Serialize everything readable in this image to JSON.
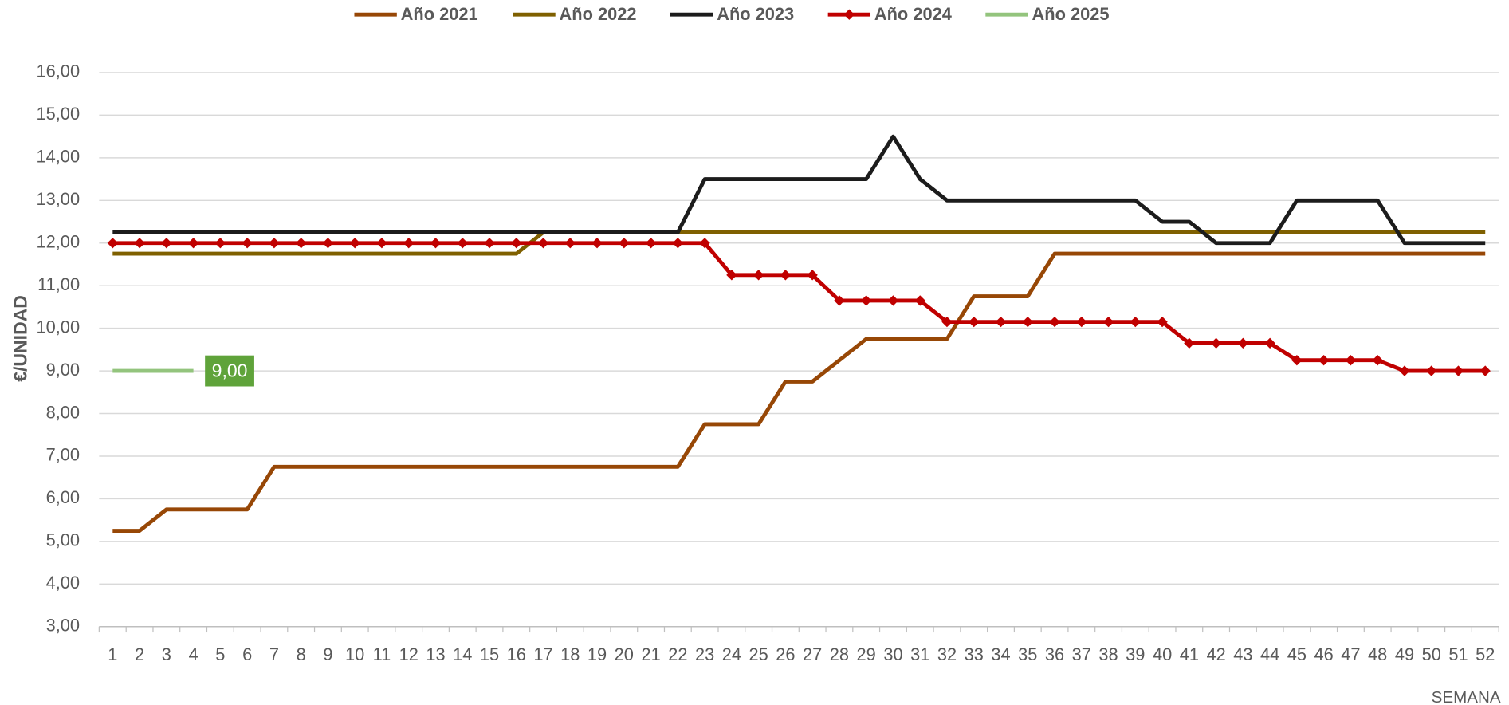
{
  "chart_data": {
    "type": "line",
    "y_label": "€/UNIDAD",
    "x_label": "SEMANA",
    "categories": [
      "1",
      "2",
      "3",
      "4",
      "5",
      "6",
      "7",
      "8",
      "9",
      "10",
      "11",
      "12",
      "13",
      "14",
      "15",
      "16",
      "17",
      "18",
      "19",
      "20",
      "21",
      "22",
      "23",
      "24",
      "25",
      "26",
      "27",
      "28",
      "29",
      "30",
      "31",
      "32",
      "33",
      "34",
      "35",
      "36",
      "37",
      "38",
      "39",
      "40",
      "41",
      "42",
      "43",
      "44",
      "45",
      "46",
      "47",
      "48",
      "49",
      "50",
      "51",
      "52"
    ],
    "series": [
      {
        "name": "Año 2021",
        "color": "#974706",
        "values": [
          5.25,
          5.25,
          5.75,
          5.75,
          5.75,
          5.75,
          6.75,
          6.75,
          6.75,
          6.75,
          6.75,
          6.75,
          6.75,
          6.75,
          6.75,
          6.75,
          6.75,
          6.75,
          6.75,
          6.75,
          6.75,
          6.75,
          7.75,
          7.75,
          7.75,
          8.75,
          8.75,
          9.25,
          9.75,
          9.75,
          9.75,
          9.75,
          10.75,
          10.75,
          10.75,
          11.75,
          11.75,
          11.75,
          11.75,
          11.75,
          11.75,
          11.75,
          11.75,
          11.75,
          11.75,
          11.75,
          11.75,
          11.75,
          11.75,
          11.75,
          11.75,
          11.75
        ]
      },
      {
        "name": "Año 2022",
        "color": "#7f6000",
        "values": [
          11.75,
          11.75,
          11.75,
          11.75,
          11.75,
          11.75,
          11.75,
          11.75,
          11.75,
          11.75,
          11.75,
          11.75,
          11.75,
          11.75,
          11.75,
          11.75,
          12.25,
          12.25,
          12.25,
          12.25,
          12.25,
          12.25,
          12.25,
          12.25,
          12.25,
          12.25,
          12.25,
          12.25,
          12.25,
          12.25,
          12.25,
          12.25,
          12.25,
          12.25,
          12.25,
          12.25,
          12.25,
          12.25,
          12.25,
          12.25,
          12.25,
          12.25,
          12.25,
          12.25,
          12.25,
          12.25,
          12.25,
          12.25,
          12.25,
          12.25,
          12.25,
          12.25
        ]
      },
      {
        "name": "Año 2023",
        "color": "#1c1c1c",
        "values": [
          12.25,
          12.25,
          12.25,
          12.25,
          12.25,
          12.25,
          12.25,
          12.25,
          12.25,
          12.25,
          12.25,
          12.25,
          12.25,
          12.25,
          12.25,
          12.25,
          12.25,
          12.25,
          12.25,
          12.25,
          12.25,
          12.25,
          13.5,
          13.5,
          13.5,
          13.5,
          13.5,
          13.5,
          13.5,
          14.5,
          13.5,
          13,
          13,
          13,
          13,
          13,
          13,
          13,
          13,
          12.5,
          12.5,
          12,
          12,
          12,
          13,
          13,
          13,
          13,
          12,
          12,
          12,
          12
        ]
      },
      {
        "name": "Año 2024",
        "color": "#c00000",
        "marker": "diamond",
        "values": [
          12,
          12,
          12,
          12,
          12,
          12,
          12,
          12,
          12,
          12,
          12,
          12,
          12,
          12,
          12,
          12,
          12,
          12,
          12,
          12,
          12,
          12,
          12,
          11.25,
          11.25,
          11.25,
          11.25,
          10.65,
          10.65,
          10.65,
          10.65,
          10.15,
          10.15,
          10.15,
          10.15,
          10.15,
          10.15,
          10.15,
          10.15,
          10.15,
          9.65,
          9.65,
          9.65,
          9.65,
          9.25,
          9.25,
          9.25,
          9.25,
          9,
          9,
          9,
          9
        ]
      },
      {
        "name": "Año 2025",
        "color": "#93c47d",
        "values": [
          9,
          9,
          9,
          9,
          null,
          null,
          null,
          null,
          null,
          null,
          null,
          null,
          null,
          null,
          null,
          null,
          null,
          null,
          null,
          null,
          null,
          null,
          null,
          null,
          null,
          null,
          null,
          null,
          null,
          null,
          null,
          null,
          null,
          null,
          null,
          null,
          null,
          null,
          null,
          null,
          null,
          null,
          null,
          null,
          null,
          null,
          null,
          null,
          null,
          null,
          null,
          null
        ],
        "value_labels": [
          null,
          null,
          null,
          "9,00",
          null,
          null,
          null,
          null,
          null,
          null,
          null,
          null,
          null,
          null,
          null,
          null,
          null,
          null,
          null,
          null,
          null,
          null,
          null,
          null,
          null,
          null,
          null,
          null,
          null,
          null,
          null,
          null,
          null,
          null,
          null,
          null,
          null,
          null,
          null,
          null,
          null,
          null,
          null,
          null,
          null,
          null,
          null,
          null,
          null,
          null,
          null,
          null
        ]
      }
    ],
    "ylim": [
      3,
      16
    ],
    "yticks": [
      {
        "value": 3,
        "label": "3,00"
      },
      {
        "value": 4,
        "label": "4,00"
      },
      {
        "value": 5,
        "label": "5,00"
      },
      {
        "value": 6,
        "label": "6,00"
      },
      {
        "value": 7,
        "label": "7,00"
      },
      {
        "value": 8,
        "label": "8,00"
      },
      {
        "value": 9,
        "label": "9,00"
      },
      {
        "value": 10,
        "label": "10,00"
      },
      {
        "value": 11,
        "label": "11,00"
      },
      {
        "value": 12,
        "label": "12,00"
      },
      {
        "value": 13,
        "label": "13,00"
      },
      {
        "value": 14,
        "label": "14,00"
      },
      {
        "value": 15,
        "label": "15,00"
      },
      {
        "value": 16,
        "label": "16,00"
      }
    ],
    "grid": true,
    "legend": "top",
    "label_color": "#5fa33a"
  }
}
